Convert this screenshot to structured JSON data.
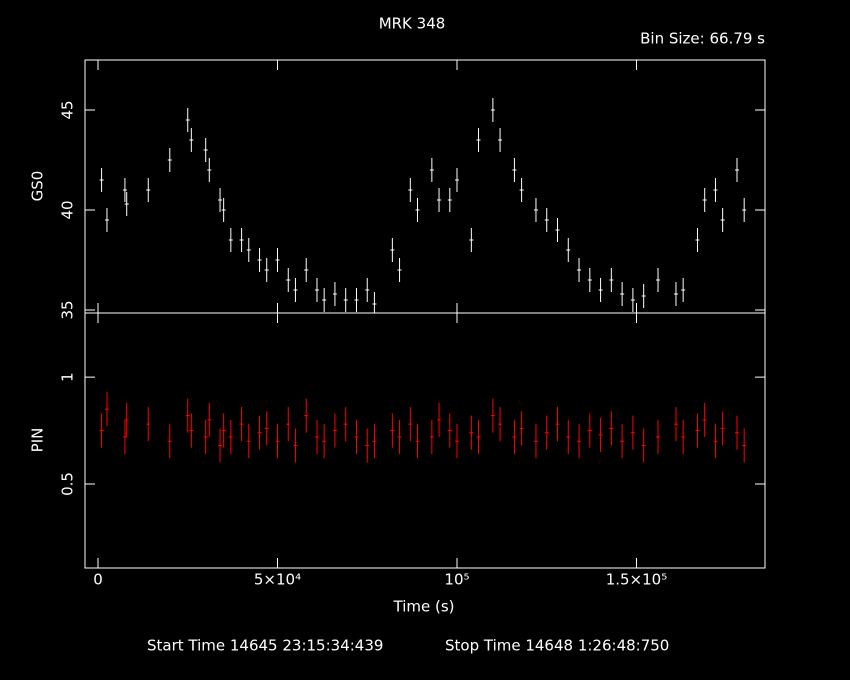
{
  "chart_data": [
    {
      "type": "errorbar",
      "title": "MRK 348",
      "subtitle": "Bin Size: 66.79 s",
      "ylabel": "GS0",
      "color": "#ffffff",
      "error": 0.6,
      "x": [
        1000,
        2500,
        7500,
        8000,
        14000,
        20000,
        25000,
        26000,
        30000,
        31000,
        34000,
        35000,
        37000,
        40000,
        42000,
        45000,
        47000,
        50000,
        53000,
        55000,
        58000,
        61000,
        63000,
        66000,
        69000,
        72000,
        75000,
        77000,
        82000,
        84000,
        87000,
        89000,
        93000,
        95000,
        98000,
        100000,
        104000,
        106000,
        110000,
        112000,
        116000,
        118000,
        122000,
        125000,
        128000,
        131000,
        134000,
        137000,
        140000,
        143000,
        146000,
        149000,
        152000,
        156000,
        161000,
        163000,
        167000,
        169000,
        172000,
        174000,
        178000,
        180000
      ],
      "values": [
        41.5,
        39.5,
        41.0,
        40.3,
        41.0,
        42.5,
        44.5,
        43.5,
        43.0,
        42.0,
        40.5,
        40.0,
        38.5,
        38.5,
        38.0,
        37.5,
        37.0,
        37.5,
        36.5,
        36.0,
        37.0,
        36.0,
        35.5,
        35.8,
        35.5,
        35.5,
        36.0,
        35.3,
        38.0,
        37.0,
        41.0,
        40.0,
        42.0,
        40.5,
        40.5,
        41.5,
        38.5,
        43.5,
        45.0,
        43.5,
        42.0,
        41.0,
        40.0,
        39.5,
        39.0,
        38.0,
        37.0,
        36.5,
        36.0,
        36.5,
        35.8,
        35.5,
        35.7,
        36.5,
        35.8,
        36.0,
        38.5,
        40.5,
        41.0,
        39.5,
        42.0,
        40.0
      ],
      "xlim": [
        -3620,
        185800
      ],
      "ylim": [
        34.85,
        47.5
      ],
      "yticks": [
        35,
        40,
        45
      ]
    },
    {
      "type": "errorbar",
      "ylabel": "PIN",
      "xlabel": "Time (s)",
      "color": "#ff0000",
      "error": 0.08,
      "annotations": [
        "Start Time 14645 23:15:34:439",
        "Stop Time 14648  1:26:48:750"
      ],
      "x": [
        1000,
        2500,
        7500,
        8000,
        14000,
        20000,
        25000,
        26000,
        30000,
        31000,
        34000,
        35000,
        37000,
        40000,
        42000,
        45000,
        47000,
        50000,
        53000,
        55000,
        58000,
        61000,
        63000,
        66000,
        69000,
        72000,
        75000,
        77000,
        82000,
        84000,
        87000,
        89000,
        93000,
        95000,
        98000,
        100000,
        104000,
        106000,
        110000,
        112000,
        116000,
        118000,
        122000,
        125000,
        128000,
        131000,
        134000,
        137000,
        140000,
        143000,
        146000,
        149000,
        152000,
        156000,
        161000,
        163000,
        167000,
        169000,
        172000,
        174000,
        178000,
        180000
      ],
      "values": [
        0.75,
        0.85,
        0.72,
        0.8,
        0.78,
        0.7,
        0.82,
        0.75,
        0.72,
        0.8,
        0.68,
        0.75,
        0.72,
        0.78,
        0.7,
        0.74,
        0.76,
        0.7,
        0.78,
        0.68,
        0.82,
        0.72,
        0.7,
        0.75,
        0.78,
        0.72,
        0.68,
        0.7,
        0.75,
        0.72,
        0.78,
        0.7,
        0.72,
        0.8,
        0.75,
        0.7,
        0.74,
        0.72,
        0.82,
        0.78,
        0.72,
        0.76,
        0.7,
        0.74,
        0.78,
        0.72,
        0.7,
        0.75,
        0.73,
        0.76,
        0.7,
        0.74,
        0.68,
        0.72,
        0.78,
        0.72,
        0.75,
        0.8,
        0.7,
        0.76,
        0.74,
        0.68
      ],
      "xlim": [
        -3620,
        185800
      ],
      "ylim": [
        0.107,
        1.3
      ],
      "yticks": [
        0.5,
        1
      ],
      "xticks": [
        0,
        {
          "value": 50000,
          "label": "5×10⁴"
        },
        {
          "value": 100000,
          "label": "10⁵"
        },
        {
          "value": 150000,
          "label": "1.5×10⁵"
        }
      ]
    }
  ]
}
